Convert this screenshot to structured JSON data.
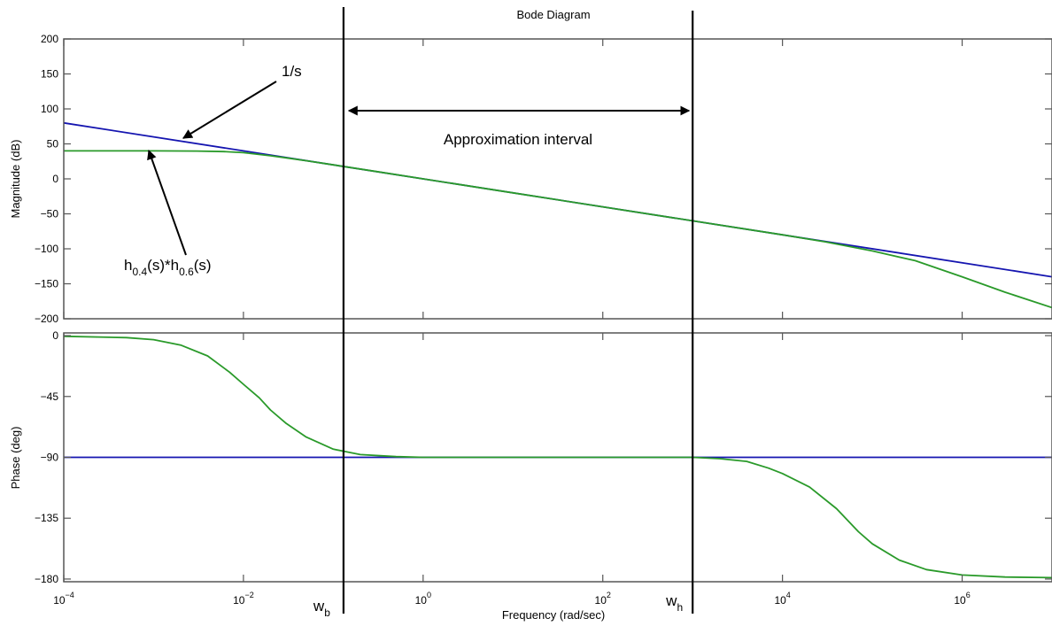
{
  "chart_data": {
    "type": "line",
    "title": "Bode Diagram",
    "xlabel": "Frequency  (rad/sec)",
    "x_scale": "log",
    "xlim": [
      0.0001,
      10000000
    ],
    "x_ticks": [
      {
        "value": 0.0001,
        "base": "10",
        "exp": "−4"
      },
      {
        "value": 0.01,
        "base": "10",
        "exp": "−2"
      },
      {
        "value": 1,
        "base": "10",
        "exp": "0"
      },
      {
        "value": 100,
        "base": "10",
        "exp": "2"
      },
      {
        "value": 10000,
        "base": "10",
        "exp": "4"
      },
      {
        "value": 1000000,
        "base": "10",
        "exp": "6"
      }
    ],
    "grid": false,
    "panels": [
      {
        "id": "magnitude",
        "ylabel": "Magnitude (dB)",
        "ylim": [
          -200,
          200
        ],
        "y_ticks": [
          200,
          150,
          100,
          50,
          0,
          -50,
          -100,
          -150,
          -200
        ],
        "y_tick_labels": [
          "200",
          "150",
          "100",
          "50",
          "0",
          "−50",
          "−100",
          "−150",
          "−200"
        ],
        "series": [
          {
            "name": "1/s",
            "color": "#1515b0",
            "points": [
              [
                0.0001,
                80
              ],
              [
                10000000,
                -140
              ]
            ]
          },
          {
            "name": "h0.4(s)*h0.6(s)",
            "color": "#2a9a2a",
            "points": [
              [
                0.0001,
                40
              ],
              [
                0.001,
                40
              ],
              [
                0.003,
                39.8
              ],
              [
                0.006,
                39
              ],
              [
                0.01,
                37.5
              ],
              [
                0.02,
                33
              ],
              [
                0.03,
                30
              ],
              [
                0.05,
                26
              ],
              [
                0.1,
                20
              ],
              [
                0.3,
                10.5
              ],
              [
                1,
                0
              ],
              [
                10,
                -20
              ],
              [
                100,
                -40
              ],
              [
                1000,
                -60
              ],
              [
                10000,
                -80
              ],
              [
                30000,
                -90
              ],
              [
                100000,
                -103
              ],
              [
                300000,
                -117
              ],
              [
                1000000,
                -140
              ],
              [
                3000000,
                -162
              ],
              [
                10000000,
                -184
              ]
            ]
          }
        ]
      },
      {
        "id": "phase",
        "ylabel": "Phase (deg)",
        "ylim": [
          -182,
          2
        ],
        "y_ticks": [
          0,
          -45,
          -90,
          -135,
          -180
        ],
        "y_tick_labels": [
          "0",
          "−45",
          "−90",
          "−135",
          "−180"
        ],
        "series": [
          {
            "name": "1/s",
            "color": "#1515b0",
            "points": [
              [
                0.0001,
                -90
              ],
              [
                10000000,
                -90
              ]
            ]
          },
          {
            "name": "h0.4(s)*h0.6(s)",
            "color": "#2a9a2a",
            "points": [
              [
                0.0001,
                -0.5
              ],
              [
                0.0005,
                -1.5
              ],
              [
                0.001,
                -3
              ],
              [
                0.002,
                -7
              ],
              [
                0.004,
                -15
              ],
              [
                0.007,
                -27
              ],
              [
                0.01,
                -36
              ],
              [
                0.015,
                -46
              ],
              [
                0.02,
                -55
              ],
              [
                0.03,
                -65
              ],
              [
                0.05,
                -75
              ],
              [
                0.1,
                -84
              ],
              [
                0.2,
                -88
              ],
              [
                0.5,
                -89.5
              ],
              [
                1,
                -90
              ],
              [
                10,
                -90
              ],
              [
                100,
                -90
              ],
              [
                1000,
                -90
              ],
              [
                2000,
                -91
              ],
              [
                4000,
                -93
              ],
              [
                7000,
                -98
              ],
              [
                10000,
                -102
              ],
              [
                20000,
                -112
              ],
              [
                40000,
                -128
              ],
              [
                70000,
                -145
              ],
              [
                100000,
                -154
              ],
              [
                200000,
                -166
              ],
              [
                400000,
                -173
              ],
              [
                1000000,
                -177
              ],
              [
                3000000,
                -178.5
              ],
              [
                10000000,
                -179
              ]
            ]
          }
        ]
      }
    ],
    "markers": [
      {
        "name": "w_b",
        "x": 0.13,
        "label_base": "w",
        "label_sub": "b"
      },
      {
        "name": "w_h",
        "x": 1000,
        "label_base": "w",
        "label_sub": "h"
      }
    ],
    "annotations": {
      "interval_label": "Approximation interval",
      "tf_label": "1/s",
      "product_label": {
        "h1": "h",
        "s1": "0.4",
        "m": "(s)*h",
        "s2": "0.6",
        "e": "(s)"
      }
    }
  }
}
